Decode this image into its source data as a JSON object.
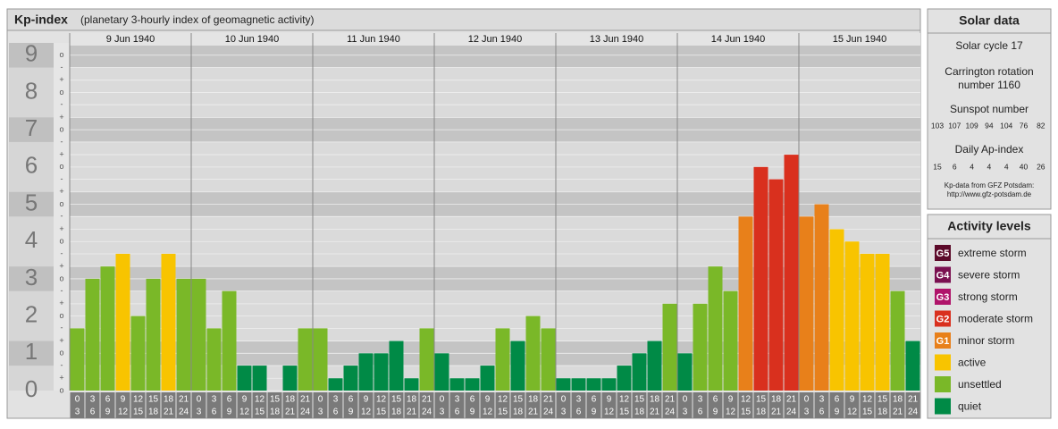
{
  "chart_data": {
    "type": "bar",
    "title": "Kp-index",
    "subtitle": "(planetary 3-hourly index of geomagnetic activity)",
    "ylim": [
      0,
      9.33
    ],
    "yticks": [
      0,
      1,
      2,
      3,
      4,
      5,
      6,
      7,
      8,
      9
    ],
    "minor_ticks": [
      {
        "value": 0,
        "label": "o"
      },
      {
        "value": 0.33,
        "label": "+"
      },
      {
        "value": 0.67,
        "label": "-"
      },
      {
        "value": 1,
        "label": "o"
      },
      {
        "value": 1.33,
        "label": "+"
      },
      {
        "value": 1.67,
        "label": "-"
      },
      {
        "value": 2,
        "label": "o"
      },
      {
        "value": 2.33,
        "label": "+"
      },
      {
        "value": 2.67,
        "label": "-"
      },
      {
        "value": 3,
        "label": "o"
      },
      {
        "value": 3.33,
        "label": "+"
      },
      {
        "value": 3.67,
        "label": "-"
      },
      {
        "value": 4,
        "label": "o"
      },
      {
        "value": 4.33,
        "label": "+"
      },
      {
        "value": 4.67,
        "label": "-"
      },
      {
        "value": 5,
        "label": "o"
      },
      {
        "value": 5.33,
        "label": "+"
      },
      {
        "value": 5.67,
        "label": "-"
      },
      {
        "value": 6,
        "label": "o"
      },
      {
        "value": 6.33,
        "label": "+"
      },
      {
        "value": 6.67,
        "label": "-"
      },
      {
        "value": 7,
        "label": "o"
      },
      {
        "value": 7.33,
        "label": "+"
      },
      {
        "value": 7.67,
        "label": "-"
      },
      {
        "value": 8,
        "label": "o"
      },
      {
        "value": 8.33,
        "label": "+"
      },
      {
        "value": 8.67,
        "label": "-"
      },
      {
        "value": 9,
        "label": "o"
      }
    ],
    "hour_ranges": [
      [
        0,
        3
      ],
      [
        3,
        6
      ],
      [
        6,
        9
      ],
      [
        9,
        12
      ],
      [
        12,
        15
      ],
      [
        15,
        18
      ],
      [
        18,
        21
      ],
      [
        21,
        24
      ]
    ],
    "series": [
      {
        "name": "9 Jun 1940",
        "values": [
          1.67,
          3,
          3.33,
          3.67,
          2,
          3,
          3.67,
          3
        ],
        "colors": [
          "#7ab828",
          "#7ab828",
          "#7ab828",
          "#f8c400",
          "#7ab828",
          "#7ab828",
          "#f8c400",
          "#7ab828"
        ]
      },
      {
        "name": "10 Jun 1940",
        "values": [
          3,
          1.67,
          2.67,
          0.67,
          0.67,
          0,
          0.67,
          1.67
        ],
        "colors": [
          "#7ab828",
          "#7ab828",
          "#7ab828",
          "#008a46",
          "#008a46",
          "#008a46",
          "#008a46",
          "#7ab828"
        ]
      },
      {
        "name": "11 Jun 1940",
        "values": [
          1.67,
          0.33,
          0.67,
          1,
          1,
          1.33,
          0.33,
          1.67
        ],
        "colors": [
          "#7ab828",
          "#008a46",
          "#008a46",
          "#008a46",
          "#008a46",
          "#008a46",
          "#008a46",
          "#7ab828"
        ]
      },
      {
        "name": "12 Jun 1940",
        "values": [
          1,
          0.33,
          0.33,
          0.67,
          1.67,
          1.33,
          2,
          1.67
        ],
        "colors": [
          "#008a46",
          "#008a46",
          "#008a46",
          "#008a46",
          "#7ab828",
          "#008a46",
          "#7ab828",
          "#7ab828"
        ]
      },
      {
        "name": "13 Jun 1940",
        "values": [
          0.33,
          0.33,
          0.33,
          0.33,
          0.67,
          1,
          1.33,
          2.33
        ],
        "colors": [
          "#008a46",
          "#008a46",
          "#008a46",
          "#008a46",
          "#008a46",
          "#008a46",
          "#008a46",
          "#7ab828"
        ]
      },
      {
        "name": "14 Jun 1940",
        "values": [
          1,
          2.33,
          3.33,
          2.67,
          4.67,
          6,
          5.67,
          6.33
        ],
        "colors": [
          "#008a46",
          "#7ab828",
          "#7ab828",
          "#7ab828",
          "#e8801a",
          "#d9301e",
          "#d9301e",
          "#d9301e"
        ]
      },
      {
        "name": "15 Jun 1940",
        "values": [
          4.67,
          5,
          4.33,
          4,
          3.67,
          3.67,
          2.67,
          1.33
        ],
        "colors": [
          "#e8801a",
          "#e8801a",
          "#f8c400",
          "#f8c400",
          "#f8c400",
          "#f8c400",
          "#7ab828",
          "#008a46"
        ]
      }
    ],
    "solar": {
      "title": "Solar data",
      "cycle": "Solar cycle 17",
      "carrington": [
        "Carrington rotation",
        "number 1160"
      ],
      "sunspot_title": "Sunspot number",
      "sunspots": [
        103,
        107,
        109,
        94,
        104,
        76,
        82
      ],
      "ap_title": "Daily Ap-index",
      "ap": [
        15,
        6,
        4,
        4,
        4,
        40,
        26
      ],
      "source": [
        "Kp-data from GFZ Potsdam:",
        "http://www.gfz-potsdam.de"
      ]
    },
    "legend_title": "Activity levels",
    "legend": [
      {
        "badge": "G5",
        "name": "extreme storm",
        "color": "#5c0a2a"
      },
      {
        "badge": "G4",
        "name": "severe storm",
        "color": "#7a1050"
      },
      {
        "badge": "G3",
        "name": "strong storm",
        "color": "#b0146a"
      },
      {
        "badge": "G2",
        "name": "moderate storm",
        "color": "#d9301e"
      },
      {
        "badge": "G1",
        "name": "minor storm",
        "color": "#e8801a"
      },
      {
        "name": "active",
        "color": "#f8c400"
      },
      {
        "name": "unsettled",
        "color": "#7ab828"
      },
      {
        "name": "quiet",
        "color": "#008a46"
      }
    ]
  }
}
